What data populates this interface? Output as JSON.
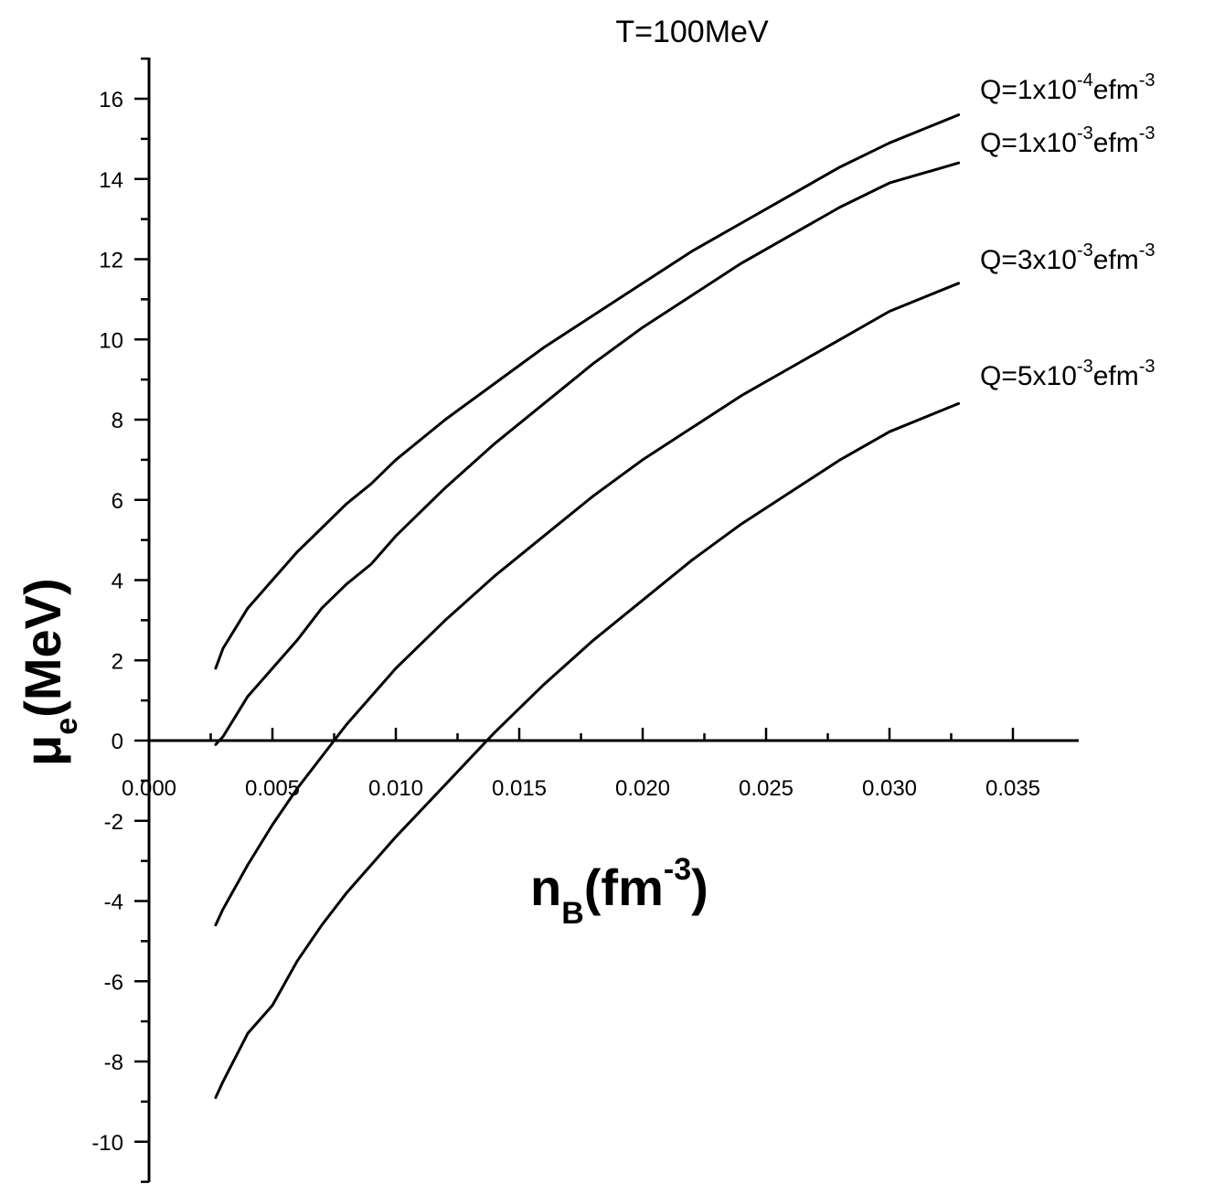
{
  "chart_data": {
    "type": "line",
    "title": "T=100MeV",
    "xlabel": {
      "main": "n",
      "sub": "B",
      "open": "(fm",
      "sup": "-3",
      "close": ")"
    },
    "ylabel": {
      "main": "μ",
      "sub": "e",
      "rest": "(MeV)"
    },
    "xlim": [
      0.0,
      0.0375
    ],
    "ylim": [
      -11,
      17
    ],
    "x_ticks": [
      0.0,
      0.005,
      0.01,
      0.015,
      0.02,
      0.025,
      0.03,
      0.035
    ],
    "x_tick_labels": [
      "0.000",
      "0.005",
      "0.010",
      "0.015",
      "0.020",
      "0.025",
      "0.030",
      "0.035"
    ],
    "y_ticks": [
      -10,
      -8,
      -6,
      -4,
      -2,
      0,
      2,
      4,
      6,
      8,
      10,
      12,
      14,
      16
    ],
    "y_tick_labels": [
      "-10",
      "-8",
      "-6",
      "-4",
      "-2",
      "0",
      "2",
      "4",
      "6",
      "8",
      "10",
      "12",
      "14",
      "16"
    ],
    "grid": false,
    "legend": "labels at right end of each curve",
    "series": [
      {
        "label": {
          "pre": "Q=1x10",
          "sup": "-4",
          "post": "efm",
          "sup2": "-3"
        },
        "x": [
          0.0027,
          0.003,
          0.004,
          0.005,
          0.006,
          0.007,
          0.008,
          0.009,
          0.01,
          0.012,
          0.014,
          0.016,
          0.018,
          0.02,
          0.022,
          0.024,
          0.026,
          0.028,
          0.03,
          0.0328
        ],
        "y": [
          1.8,
          2.3,
          3.3,
          4.0,
          4.7,
          5.3,
          5.9,
          6.4,
          7.0,
          8.0,
          8.9,
          9.8,
          10.6,
          11.4,
          12.2,
          12.9,
          13.6,
          14.3,
          14.9,
          15.6
        ]
      },
      {
        "label": {
          "pre": "Q=1x10",
          "sup": "-3",
          "post": "efm",
          "sup2": "-3"
        },
        "x": [
          0.0027,
          0.003,
          0.0035,
          0.004,
          0.005,
          0.006,
          0.007,
          0.008,
          0.009,
          0.01,
          0.012,
          0.014,
          0.016,
          0.018,
          0.02,
          0.022,
          0.024,
          0.026,
          0.028,
          0.03,
          0.0328
        ],
        "y": [
          -0.1,
          0.1,
          0.6,
          1.1,
          1.8,
          2.5,
          3.3,
          3.9,
          4.4,
          5.1,
          6.3,
          7.4,
          8.4,
          9.4,
          10.3,
          11.1,
          11.9,
          12.6,
          13.3,
          13.9,
          14.4
        ]
      },
      {
        "label": {
          "pre": "Q=3x10",
          "sup": "-3",
          "post": "efm",
          "sup2": "-3"
        },
        "x": [
          0.0027,
          0.003,
          0.004,
          0.005,
          0.006,
          0.007,
          0.008,
          0.009,
          0.01,
          0.012,
          0.014,
          0.016,
          0.018,
          0.02,
          0.022,
          0.024,
          0.026,
          0.028,
          0.03,
          0.0328
        ],
        "y": [
          -4.6,
          -4.2,
          -3.1,
          -2.1,
          -1.2,
          -0.4,
          0.4,
          1.1,
          1.8,
          3.0,
          4.1,
          5.1,
          6.1,
          7.0,
          7.8,
          8.6,
          9.3,
          10.0,
          10.7,
          11.4
        ]
      },
      {
        "label": {
          "pre": "Q=5x10",
          "sup": "-3",
          "post": "efm",
          "sup2": "-3"
        },
        "x": [
          0.0027,
          0.003,
          0.004,
          0.005,
          0.006,
          0.007,
          0.008,
          0.009,
          0.01,
          0.012,
          0.014,
          0.016,
          0.018,
          0.02,
          0.022,
          0.024,
          0.026,
          0.028,
          0.03,
          0.0328
        ],
        "y": [
          -8.9,
          -8.5,
          -7.3,
          -6.6,
          -5.5,
          -4.6,
          -3.8,
          -3.1,
          -2.4,
          -1.1,
          0.2,
          1.4,
          2.5,
          3.5,
          4.5,
          5.4,
          6.2,
          7.0,
          7.7,
          8.4
        ]
      }
    ]
  }
}
